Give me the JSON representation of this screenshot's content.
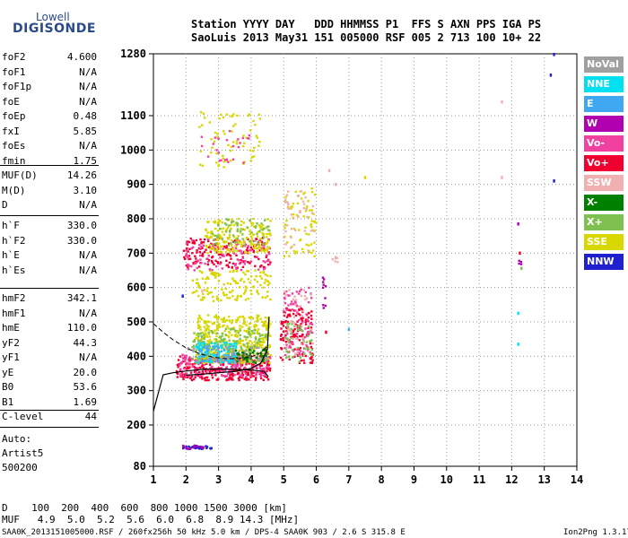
{
  "logo": {
    "line1": "Lowell",
    "line2": "DIGISONDE"
  },
  "header": {
    "line1": "Station YYYY DAY   DDD HHMMSS P1  FFS S AXN PPS IGA PS",
    "line2": "SaoLuis 2013 May31 151 005000 RSF 005 2 713 100 10+ 22"
  },
  "params": {
    "group1": [
      {
        "k": "foF2",
        "v": "4.600"
      },
      {
        "k": "foF1",
        "v": "N/A"
      },
      {
        "k": "foF1p",
        "v": "N/A"
      },
      {
        "k": "foE",
        "v": "N/A"
      },
      {
        "k": "foEp",
        "v": "0.48"
      },
      {
        "k": "fxI",
        "v": "5.85"
      },
      {
        "k": "foEs",
        "v": "N/A"
      },
      {
        "k": "fmin",
        "v": "1.75"
      }
    ],
    "group2": [
      {
        "k": "MUF(D)",
        "v": "14.26"
      },
      {
        "k": "M(D)",
        "v": "3.10"
      },
      {
        "k": "D",
        "v": "N/A"
      }
    ],
    "group3": [
      {
        "k": "h`F",
        "v": "330.0"
      },
      {
        "k": "h`F2",
        "v": "330.0"
      },
      {
        "k": "h`E",
        "v": "N/A"
      },
      {
        "k": "h`Es",
        "v": "N/A"
      }
    ],
    "group4": [
      {
        "k": "hmF2",
        "v": "342.1"
      },
      {
        "k": "hmF1",
        "v": "N/A"
      },
      {
        "k": "hmE",
        "v": "110.0"
      },
      {
        "k": "yF2",
        "v": "44.3"
      },
      {
        "k": "yF1",
        "v": "N/A"
      },
      {
        "k": "yE",
        "v": "20.0"
      },
      {
        "k": "B0",
        "v": "53.6"
      },
      {
        "k": "B1",
        "v": "1.69"
      }
    ],
    "clevel": {
      "k": "C-level",
      "v": "44"
    }
  },
  "auto": {
    "l1": "Auto:",
    "l2": "Artist5",
    "l3": "500200"
  },
  "legend": [
    {
      "label": "NoVal",
      "color": "#a0a0a0"
    },
    {
      "label": "NNE",
      "color": "#00e0f0"
    },
    {
      "label": "E",
      "color": "#40a8f0"
    },
    {
      "label": "W",
      "color": "#b000b0"
    },
    {
      "label": "Vo-",
      "color": "#f040a0"
    },
    {
      "label": "Vo+",
      "color": "#f00030"
    },
    {
      "label": "SSW",
      "color": "#f0b0b0"
    },
    {
      "label": "X-",
      "color": "#008000"
    },
    {
      "label": "X+",
      "color": "#80c050"
    },
    {
      "label": "SSE",
      "color": "#d8d800"
    },
    {
      "label": "NNW",
      "color": "#2020d0"
    }
  ],
  "footer": {
    "d_row": "D    100  200  400  600  800 1000 1500 3000 [km]",
    "muf_row": "MUF   4.9  5.0  5.2  5.6  6.0  6.8  8.9 14.3 [MHz]",
    "info": "SAA0K_2013151005000.RSF / 260fx256h 50 kHz 5.0 km / DPS-4 SAA0K 903 / 2.6 S 315.8 E",
    "version": "Ion2Png 1.3.17"
  },
  "chart_data": {
    "type": "scatter",
    "xlim": [
      1,
      14
    ],
    "ylim": [
      80,
      1280
    ],
    "xticks": [
      1,
      2,
      3,
      4,
      5,
      6,
      7,
      8,
      9,
      10,
      11,
      12,
      13,
      14
    ],
    "yticks": [
      80,
      200,
      300,
      400,
      500,
      600,
      700,
      800,
      900,
      1000,
      1100,
      1280
    ],
    "grid": true,
    "legend_position": "right",
    "profile_curve": [
      [
        4.53,
        340
      ],
      [
        4.4,
        356
      ],
      [
        4.0,
        360
      ],
      [
        3.5,
        362
      ],
      [
        3.0,
        363
      ],
      [
        2.5,
        362
      ],
      [
        2.0,
        357
      ],
      [
        1.6,
        352
      ],
      [
        1.3,
        346
      ],
      [
        1.0,
        240
      ]
    ],
    "trace_curve": [
      [
        2.0,
        345
      ],
      [
        2.5,
        348
      ],
      [
        3.0,
        352
      ],
      [
        3.5,
        356
      ],
      [
        4.0,
        365
      ],
      [
        4.3,
        380
      ],
      [
        4.5,
        420
      ],
      [
        4.55,
        515
      ]
    ],
    "dashed_curve": [
      [
        1.0,
        495
      ],
      [
        1.3,
        470
      ],
      [
        1.6,
        448
      ],
      [
        2.0,
        425
      ],
      [
        2.4,
        408
      ],
      [
        2.8,
        398
      ],
      [
        3.2,
        393
      ],
      [
        3.6,
        393
      ],
      [
        4.0,
        398
      ],
      [
        4.3,
        410
      ],
      [
        4.5,
        430
      ]
    ],
    "clusters": [
      {
        "color": "#f00030",
        "x": [
          1.7,
          4.6
        ],
        "y": [
          330,
          400
        ],
        "n": 320
      },
      {
        "color": "#f040a0",
        "x": [
          1.8,
          4.6
        ],
        "y": [
          340,
          410
        ],
        "n": 180
      },
      {
        "color": "#d8d800",
        "x": [
          2.3,
          4.6
        ],
        "y": [
          380,
          520
        ],
        "n": 420
      },
      {
        "color": "#80c050",
        "x": [
          2.2,
          4.5
        ],
        "y": [
          380,
          480
        ],
        "n": 150
      },
      {
        "color": "#00e0f0",
        "x": [
          2.3,
          3.6
        ],
        "y": [
          380,
          440
        ],
        "n": 90
      },
      {
        "color": "#40a8f0",
        "x": [
          2.4,
          3.5
        ],
        "y": [
          380,
          430
        ],
        "n": 50
      },
      {
        "color": "#a0a0a0",
        "x": [
          2.0,
          4.5
        ],
        "y": [
          380,
          430
        ],
        "n": 60
      },
      {
        "color": "#008000",
        "x": [
          3.5,
          4.5
        ],
        "y": [
          380,
          420
        ],
        "n": 40
      },
      {
        "color": "#f00030",
        "x": [
          4.9,
          5.9
        ],
        "y": [
          380,
          540
        ],
        "n": 150
      },
      {
        "color": "#f040a0",
        "x": [
          5.0,
          5.9
        ],
        "y": [
          400,
          600
        ],
        "n": 80
      },
      {
        "color": "#80c050",
        "x": [
          5.0,
          5.9
        ],
        "y": [
          380,
          500
        ],
        "n": 50
      },
      {
        "color": "#f0b0b0",
        "x": [
          5.0,
          5.9
        ],
        "y": [
          400,
          600
        ],
        "n": 40
      },
      {
        "color": "#d8d800",
        "x": [
          2.2,
          4.6
        ],
        "y": [
          560,
          650
        ],
        "n": 140
      },
      {
        "color": "#f00030",
        "x": [
          1.9,
          4.6
        ],
        "y": [
          655,
          745
        ],
        "n": 160
      },
      {
        "color": "#f040a0",
        "x": [
          2.0,
          4.6
        ],
        "y": [
          650,
          740
        ],
        "n": 100
      },
      {
        "color": "#d8d800",
        "x": [
          2.6,
          4.6
        ],
        "y": [
          700,
          800
        ],
        "n": 180
      },
      {
        "color": "#80c050",
        "x": [
          2.8,
          4.6
        ],
        "y": [
          720,
          800
        ],
        "n": 60
      },
      {
        "color": "#d8d800",
        "x": [
          5.0,
          6.0
        ],
        "y": [
          690,
          890
        ],
        "n": 70
      },
      {
        "color": "#f0b0b0",
        "x": [
          5.0,
          6.0
        ],
        "y": [
          700,
          880
        ],
        "n": 40
      },
      {
        "color": "#d8d800",
        "x": [
          2.4,
          4.3
        ],
        "y": [
          950,
          1110
        ],
        "n": 70
      },
      {
        "color": "#f040a0",
        "x": [
          2.4,
          4.0
        ],
        "y": [
          960,
          1060
        ],
        "n": 25
      },
      {
        "color": "#2020d0",
        "x": [
          1.9,
          2.8
        ],
        "y": [
          130,
          140
        ],
        "n": 30
      },
      {
        "color": "#b000b0",
        "x": [
          1.9,
          2.6
        ],
        "y": [
          130,
          140
        ],
        "n": 15
      },
      {
        "color": "#b000b0",
        "x": [
          6.2,
          6.3
        ],
        "y": [
          540,
          630
        ],
        "n": 10
      },
      {
        "color": "#f0b0b0",
        "x": [
          6.5,
          6.7
        ],
        "y": [
          670,
          690
        ],
        "n": 6
      },
      {
        "color": "#b000b0",
        "x": [
          12.2,
          12.3
        ],
        "y": [
          660,
          690
        ],
        "n": 4
      }
    ],
    "points": [
      {
        "x": 2.5,
        "y": 590,
        "c": "#f0b0b0"
      },
      {
        "x": 6.4,
        "y": 940,
        "c": "#f0b0b0"
      },
      {
        "x": 6.6,
        "y": 900,
        "c": "#f0b0b0"
      },
      {
        "x": 7.5,
        "y": 920,
        "c": "#d8d800"
      },
      {
        "x": 11.7,
        "y": 920,
        "c": "#f0b0b0"
      },
      {
        "x": 13.3,
        "y": 1278,
        "c": "#2020d0"
      },
      {
        "x": 13.2,
        "y": 1218,
        "c": "#2020d0"
      },
      {
        "x": 13.3,
        "y": 910,
        "c": "#2020d0"
      },
      {
        "x": 12.2,
        "y": 785,
        "c": "#b000b0"
      },
      {
        "x": 12.25,
        "y": 700,
        "c": "#f00030"
      },
      {
        "x": 12.2,
        "y": 525,
        "c": "#00e0f0"
      },
      {
        "x": 12.2,
        "y": 435,
        "c": "#00e0f0"
      },
      {
        "x": 12.3,
        "y": 656,
        "c": "#80c050"
      },
      {
        "x": 6.3,
        "y": 470,
        "c": "#f00030"
      },
      {
        "x": 7.0,
        "y": 478,
        "c": "#40a8f0"
      },
      {
        "x": 11.7,
        "y": 1140,
        "c": "#f0b0b0"
      },
      {
        "x": 1.9,
        "y": 575,
        "c": "#2020d0"
      }
    ]
  }
}
